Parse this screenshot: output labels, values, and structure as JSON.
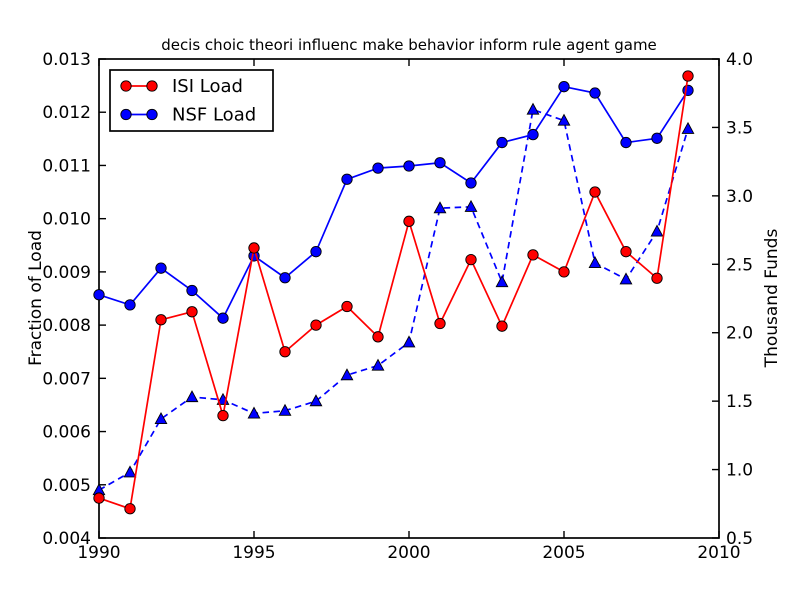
{
  "figure": {
    "background": "#ffffff"
  },
  "chart_data": {
    "type": "line",
    "title": "decis choic theori influenc make behavior inform rule agent game",
    "grid": false,
    "x": [
      1990,
      1991,
      1992,
      1993,
      1994,
      1995,
      1996,
      1997,
      1998,
      1999,
      2000,
      2001,
      2002,
      2003,
      2004,
      2005,
      2006,
      2007,
      2008,
      2009
    ],
    "xlim": [
      1990,
      2010
    ],
    "x_tick_labels": [
      "1990",
      "1995",
      "2000",
      "2005",
      "2010"
    ],
    "left_axis": {
      "label": "Fraction of Load",
      "lim": [
        0.004,
        0.013
      ],
      "tick_labels": [
        "0.004",
        "0.005",
        "0.006",
        "0.007",
        "0.008",
        "0.009",
        "0.010",
        "0.011",
        "0.012",
        "0.013"
      ]
    },
    "right_axis": {
      "label": "Thousand Funds",
      "lim": [
        0.5,
        4.0
      ],
      "tick_labels": [
        "0.5",
        "1.0",
        "1.5",
        "2.0",
        "2.5",
        "3.0",
        "3.5",
        "4.0"
      ]
    },
    "legend": {
      "position": "upper-left"
    },
    "series": [
      {
        "name": "ISI Load",
        "axis": "left",
        "color": "#ff0000",
        "edge_color": "#000000",
        "line": "solid",
        "marker": "circle",
        "in_legend": true,
        "values": [
          0.00475,
          0.00455,
          0.0081,
          0.00825,
          0.0063,
          0.00945,
          0.0075,
          0.008,
          0.00835,
          0.00778,
          0.00995,
          0.00803,
          0.00923,
          0.00798,
          0.00932,
          0.009,
          0.0105,
          0.00938,
          0.00888,
          0.01268
        ]
      },
      {
        "name": "NSF Load",
        "axis": "left",
        "color": "#0000ff",
        "edge_color": "#000000",
        "line": "solid",
        "marker": "circle",
        "in_legend": true,
        "values": [
          0.00857,
          0.00838,
          0.00907,
          0.00865,
          0.00813,
          0.0093,
          0.00889,
          0.00938,
          0.01074,
          0.01095,
          0.01099,
          0.01105,
          0.01067,
          0.01143,
          0.01158,
          0.01248,
          0.01236,
          0.01143,
          0.01151,
          0.01241
        ]
      },
      {
        "name": "",
        "axis": "right",
        "color": "#0000ff",
        "edge_color": "#000000",
        "line": "dashed",
        "marker": "triangle",
        "in_legend": false,
        "values": [
          0.85,
          0.98,
          1.37,
          1.53,
          1.51,
          1.41,
          1.43,
          1.5,
          1.69,
          1.76,
          1.93,
          2.91,
          2.92,
          2.37,
          3.63,
          3.55,
          2.51,
          2.39,
          2.74,
          3.49
        ]
      }
    ]
  }
}
